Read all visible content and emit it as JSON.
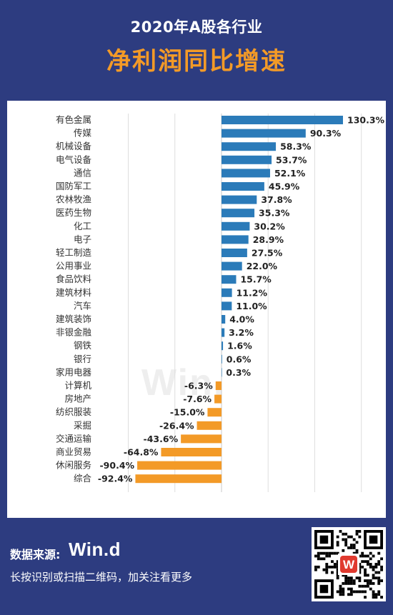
{
  "header": {
    "subtitle": "2020年A股各行业",
    "title": "净利润同比增速"
  },
  "watermark": "Win.",
  "footer": {
    "source_label": "数据来源:",
    "logo_text": "Win.d",
    "hint": "长按识别或扫描二维码，加关注看更多"
  },
  "colors": {
    "positive": "#2b7bb9",
    "negative": "#f39a27",
    "background": "#2d3c80",
    "title": "#f39a27"
  },
  "icons": {
    "qr": "qr-code-icon",
    "qr_center": "wind-logo-icon"
  },
  "chart_data": {
    "type": "bar",
    "orientation": "horizontal",
    "categories": [
      "有色金属",
      "传媒",
      "机械设备",
      "电气设备",
      "通信",
      "国防军工",
      "农林牧渔",
      "医药生物",
      "化工",
      "电子",
      "轻工制造",
      "公用事业",
      "食品饮料",
      "建筑材料",
      "汽车",
      "建筑装饰",
      "非银金融",
      "钢铁",
      "银行",
      "家用电器",
      "计算机",
      "房地产",
      "纺织服装",
      "采掘",
      "交通运输",
      "商业贸易",
      "休闲服务",
      "综合"
    ],
    "values": [
      130.3,
      90.3,
      58.3,
      53.7,
      52.1,
      45.9,
      37.8,
      35.3,
      30.2,
      28.9,
      27.5,
      22.0,
      15.7,
      11.2,
      11.0,
      4.0,
      3.2,
      1.6,
      0.6,
      0.3,
      -6.3,
      -7.6,
      -15.0,
      -26.4,
      -43.6,
      -64.8,
      -90.4,
      -92.4
    ],
    "labels": [
      "130.3%",
      "90.3%",
      "58.3%",
      "53.7%",
      "52.1%",
      "45.9%",
      "37.8%",
      "35.3%",
      "30.2%",
      "28.9%",
      "27.5%",
      "22.0%",
      "15.7%",
      "11.2%",
      "11.0%",
      "4.0%",
      "3.2%",
      "1.6%",
      "0.6%",
      "0.3%",
      "-6.3%",
      "-7.6%",
      "-15.0%",
      "-26.4%",
      "-43.6%",
      "-64.8%",
      "-90.4%",
      "-92.4%"
    ],
    "xlim": [
      -100,
      150
    ],
    "grid": true,
    "legend": "none"
  }
}
